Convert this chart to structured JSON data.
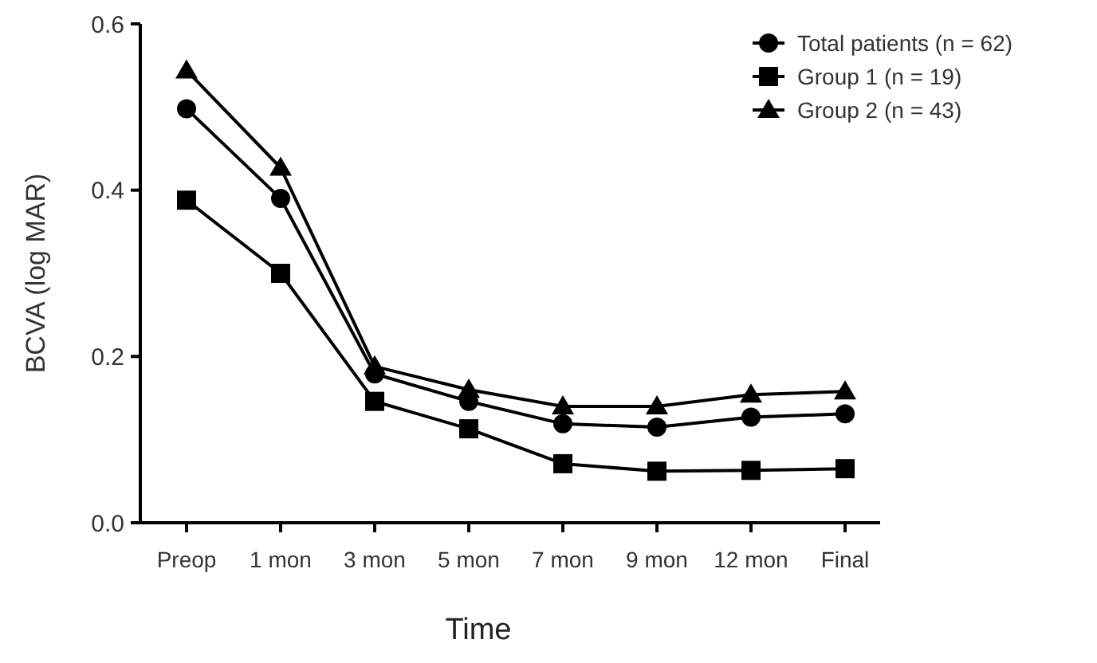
{
  "chart_data": {
    "type": "line",
    "xlabel": "Time",
    "ylabel": "BCVA (log MAR)",
    "categories": [
      "Preop",
      "1 mon",
      "3 mon",
      "5 mon",
      "7 mon",
      "9 mon",
      "12 mon",
      "Final"
    ],
    "series": [
      {
        "name": "Total patients (n = 62)",
        "color": "#000000",
        "marker": "circle",
        "values": [
          0.498,
          0.39,
          0.179,
          0.146,
          0.119,
          0.115,
          0.127,
          0.131
        ]
      },
      {
        "name": "Group 1 (n = 19)",
        "color": "#000000",
        "marker": "square",
        "values": [
          0.388,
          0.3,
          0.146,
          0.113,
          0.071,
          0.062,
          0.063,
          0.065
        ]
      },
      {
        "name": "Group 2 (n = 43)",
        "color": "#000000",
        "marker": "triangle",
        "values": [
          0.544,
          0.427,
          0.188,
          0.16,
          0.14,
          0.14,
          0.154,
          0.158
        ]
      }
    ],
    "ylim": [
      0,
      0.6
    ],
    "yticks": [
      {
        "value": 0,
        "label": "0.0"
      },
      {
        "value": 0.2,
        "label": "0.2"
      },
      {
        "value": 0.4,
        "label": "0.4"
      },
      {
        "value": 0.6,
        "label": "0.6"
      }
    ],
    "grid": false,
    "legend": "top right",
    "line_style": "solid"
  }
}
